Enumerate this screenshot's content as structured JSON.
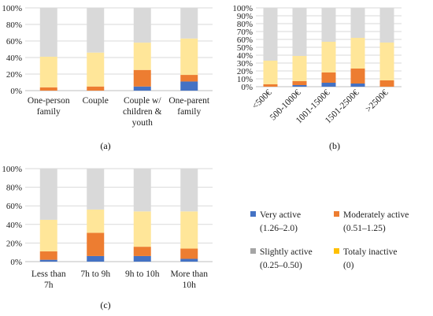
{
  "chart_data": [
    {
      "type": "bar",
      "stacked": true,
      "panel_label": "(a)",
      "categories": [
        [
          "One-person",
          "family"
        ],
        [
          "Couple"
        ],
        [
          "Couple w/",
          "children &",
          "youth"
        ],
        [
          "One-parent",
          "family"
        ]
      ],
      "ylim": [
        0,
        100
      ],
      "yticks": [
        "0%",
        "20%",
        "40%",
        "60%",
        "80%",
        "100%"
      ],
      "grid": true,
      "series": [
        {
          "name": "Very active",
          "values": [
            0,
            0,
            5,
            11
          ]
        },
        {
          "name": "Moderately active",
          "values": [
            4,
            5,
            20,
            8
          ]
        },
        {
          "name": "Totaly inactive",
          "values": [
            37,
            41,
            33,
            44
          ]
        },
        {
          "name": "Slightly active",
          "values": [
            59,
            54,
            42,
            37
          ]
        }
      ]
    },
    {
      "type": "bar",
      "stacked": true,
      "panel_label": "(b)",
      "categories": [
        "<500€",
        "500-1000€",
        "1001-1500€",
        "1501-2500€",
        ">2500€"
      ],
      "ylim": [
        0,
        100
      ],
      "yticks": [
        "0%",
        "10%",
        "20%",
        "30%",
        "40%",
        "50%",
        "60%",
        "70%",
        "80%",
        "90%",
        "100%"
      ],
      "grid": true,
      "series": [
        {
          "name": "Very active",
          "values": [
            0,
            2,
            5,
            4,
            0
          ]
        },
        {
          "name": "Moderately active",
          "values": [
            3,
            5,
            13,
            19,
            8
          ]
        },
        {
          "name": "Totaly inactive",
          "values": [
            30,
            32,
            39,
            39,
            48
          ]
        },
        {
          "name": "Slightly active",
          "values": [
            67,
            61,
            43,
            38,
            44
          ]
        }
      ]
    },
    {
      "type": "bar",
      "stacked": true,
      "panel_label": "(c)",
      "categories": [
        [
          "Less than",
          "7h"
        ],
        [
          "7h to 9h"
        ],
        [
          "9h to 10h"
        ],
        [
          "More than",
          "10h"
        ]
      ],
      "ylim": [
        0,
        100
      ],
      "yticks": [
        "0%",
        "20%",
        "40%",
        "60%",
        "80%",
        "100%"
      ],
      "grid": true,
      "series": [
        {
          "name": "Very active",
          "values": [
            2,
            6,
            6,
            3
          ]
        },
        {
          "name": "Moderately active",
          "values": [
            9,
            25,
            10,
            11
          ]
        },
        {
          "name": "Totaly inactive",
          "values": [
            34,
            25,
            38,
            40
          ]
        },
        {
          "name": "Slightly active",
          "values": [
            55,
            44,
            46,
            46
          ]
        }
      ]
    }
  ],
  "colors": {
    "Very active": "#4472c4",
    "Moderately active": "#ed7d31",
    "Slightly active": "#d9d9d9",
    "Totaly inactive": "#ffe699"
  },
  "legend": [
    {
      "swatch": "#4472c4",
      "name": "Very active",
      "range": "(1.26–2.0)"
    },
    {
      "swatch": "#ed7d31",
      "name": "Moderately active",
      "range": "(0.51–1.25)"
    },
    {
      "swatch": "#a5a5a5",
      "name": "Slightly active",
      "range": "(0.25–0.50)"
    },
    {
      "swatch": "#ffc000",
      "name": "Totaly inactive",
      "range": "(0)"
    }
  ]
}
